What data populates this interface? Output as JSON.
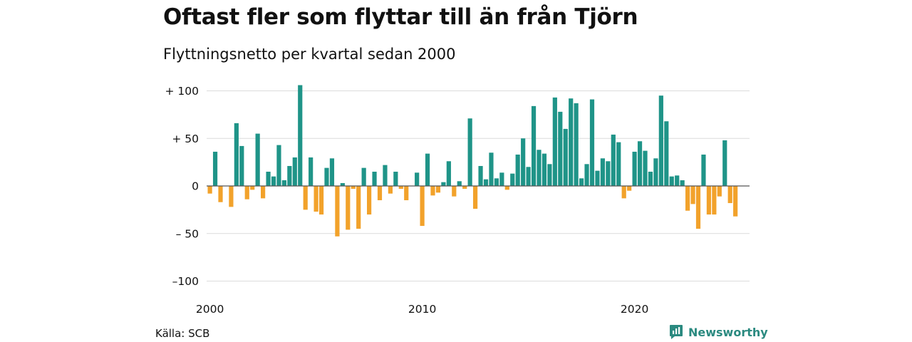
{
  "title": "Oftast fler som flyttar till än från Tjörn",
  "subtitle": "Flyttningsnetto per kvartal sedan 2000",
  "source": "Källa: SCB",
  "brand": "Newsworthy",
  "colors": {
    "positive": "#1f9488",
    "negative": "#f2a22b",
    "grid": "#dcdcdc",
    "zero_line": "#555555"
  },
  "chart_data": {
    "type": "bar",
    "x_start": "2000 Q1",
    "x_ticks": [
      "2000",
      "2010",
      "2020"
    ],
    "y_ticks": [
      "+ 100",
      "+  50",
      "0",
      "– 50",
      "–100"
    ],
    "ylim": [
      -100,
      100
    ],
    "grid": true,
    "values": [
      -8,
      36,
      -17,
      0,
      -22,
      66,
      42,
      -14,
      -4,
      55,
      -13,
      15,
      10,
      43,
      6,
      21,
      30,
      106,
      -25,
      30,
      -27,
      -30,
      19,
      29,
      -53,
      3,
      -46,
      -3,
      -45,
      19,
      -30,
      15,
      -15,
      22,
      -8,
      15,
      -3,
      -15,
      0,
      14,
      -42,
      34,
      -10,
      -7,
      4,
      26,
      -11,
      5,
      -3,
      71,
      -24,
      21,
      7,
      35,
      8,
      14,
      -4,
      13,
      33,
      50,
      20,
      84,
      38,
      34,
      23,
      93,
      78,
      60,
      92,
      87,
      8,
      23,
      91,
      16,
      29,
      26,
      54,
      46,
      -13,
      -5,
      36,
      47,
      37,
      15,
      29,
      95,
      68,
      10,
      11,
      6,
      -26,
      -19,
      -45,
      33,
      -30,
      -30,
      -11,
      48,
      -18,
      -32
    ]
  }
}
